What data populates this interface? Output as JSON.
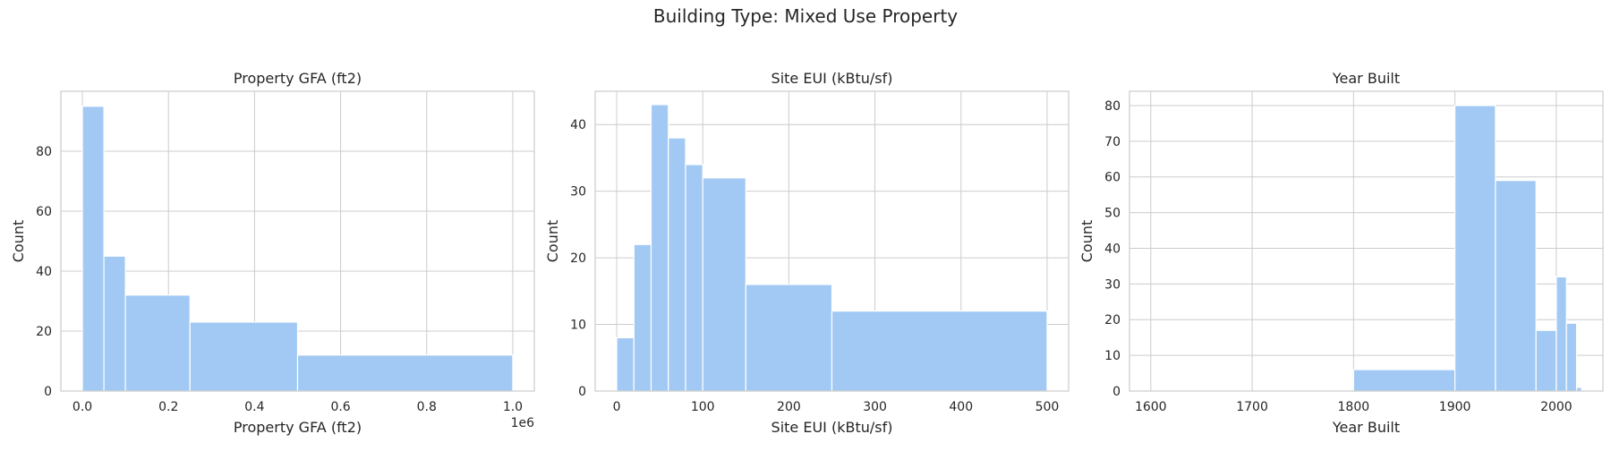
{
  "figure": {
    "suptitle": "Building Type: Mixed Use Property"
  },
  "chart_data": [
    {
      "type": "bar",
      "title": "Property GFA (ft2)",
      "xlabel": "Property GFA (ft2)",
      "ylabel": "Count",
      "x_offset_label": "1e6",
      "xlim": [
        -50000,
        1050000
      ],
      "ylim": [
        0,
        100
      ],
      "xticks": [
        0,
        200000,
        400000,
        600000,
        800000,
        1000000
      ],
      "xtick_labels": [
        "0.0",
        "0.2",
        "0.4",
        "0.6",
        "0.8",
        "1.0"
      ],
      "yticks": [
        0,
        20,
        40,
        60,
        80
      ],
      "bins": [
        {
          "x0": 0,
          "x1": 50000,
          "count": 95
        },
        {
          "x0": 50000,
          "x1": 100000,
          "count": 45
        },
        {
          "x0": 100000,
          "x1": 250000,
          "count": 32
        },
        {
          "x0": 250000,
          "x1": 500000,
          "count": 23
        },
        {
          "x0": 500000,
          "x1": 1000000,
          "count": 12
        }
      ],
      "grid": true,
      "color": "#a1c9f4"
    },
    {
      "type": "bar",
      "title": "Site EUI (kBtu/sf)",
      "xlabel": "Site EUI (kBtu/sf)",
      "ylabel": "Count",
      "xlim": [
        -25,
        525
      ],
      "ylim": [
        0,
        45
      ],
      "xticks": [
        0,
        100,
        200,
        300,
        400,
        500
      ],
      "xtick_labels": [
        "0",
        "100",
        "200",
        "300",
        "400",
        "500"
      ],
      "yticks": [
        0,
        10,
        20,
        30,
        40
      ],
      "bins": [
        {
          "x0": 0,
          "x1": 20,
          "count": 8
        },
        {
          "x0": 20,
          "x1": 40,
          "count": 22
        },
        {
          "x0": 40,
          "x1": 60,
          "count": 43
        },
        {
          "x0": 60,
          "x1": 80,
          "count": 38
        },
        {
          "x0": 80,
          "x1": 100,
          "count": 34
        },
        {
          "x0": 100,
          "x1": 150,
          "count": 32
        },
        {
          "x0": 150,
          "x1": 250,
          "count": 16
        },
        {
          "x0": 250,
          "x1": 500,
          "count": 12
        }
      ],
      "grid": true,
      "color": "#a1c9f4"
    },
    {
      "type": "bar",
      "title": "Year Built",
      "xlabel": "Year Built",
      "ylabel": "Count",
      "xlim": [
        1579,
        2046
      ],
      "ylim": [
        0,
        84
      ],
      "xticks": [
        1600,
        1700,
        1800,
        1900,
        2000
      ],
      "xtick_labels": [
        "1600",
        "1700",
        "1800",
        "1900",
        "2000"
      ],
      "yticks": [
        0,
        10,
        20,
        30,
        40,
        50,
        60,
        70,
        80
      ],
      "bins": [
        {
          "x0": 1600,
          "x1": 1800,
          "count": 0
        },
        {
          "x0": 1800,
          "x1": 1900,
          "count": 6
        },
        {
          "x0": 1900,
          "x1": 1940,
          "count": 80
        },
        {
          "x0": 1940,
          "x1": 1980,
          "count": 59
        },
        {
          "x0": 1980,
          "x1": 2000,
          "count": 17
        },
        {
          "x0": 2000,
          "x1": 2010,
          "count": 32
        },
        {
          "x0": 2010,
          "x1": 2020,
          "count": 19
        },
        {
          "x0": 2020,
          "x1": 2025,
          "count": 1
        }
      ],
      "grid": true,
      "color": "#a1c9f4"
    }
  ]
}
